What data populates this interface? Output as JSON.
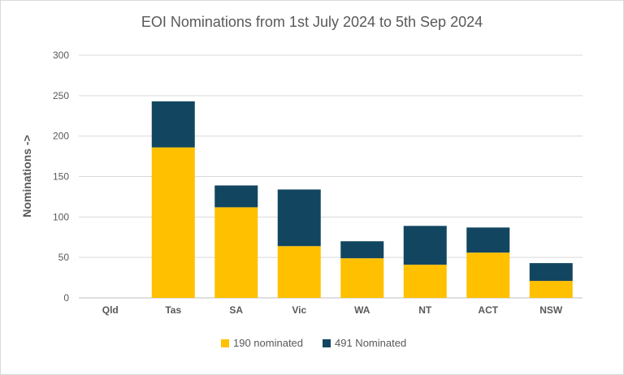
{
  "chart_data": {
    "type": "bar",
    "stacked": true,
    "title": "EOI Nominations from 1st July 2024 to 5th Sep 2024",
    "xlabel": "",
    "ylabel": "Nominations ->",
    "ylim": [
      0,
      300
    ],
    "yticks": [
      0,
      50,
      100,
      150,
      200,
      250,
      300
    ],
    "grid": true,
    "legend_position": "bottom",
    "categories": [
      "Qld",
      "Tas",
      "SA",
      "Vic",
      "WA",
      "NT",
      "ACT",
      "NSW"
    ],
    "series": [
      {
        "name": "190 nominated",
        "color": "#FFC000",
        "values": [
          0,
          186,
          112,
          64,
          49,
          41,
          56,
          21
        ]
      },
      {
        "name": "491 Nominated",
        "color": "#124660",
        "values": [
          0,
          57,
          27,
          70,
          21,
          48,
          31,
          22
        ]
      }
    ]
  }
}
